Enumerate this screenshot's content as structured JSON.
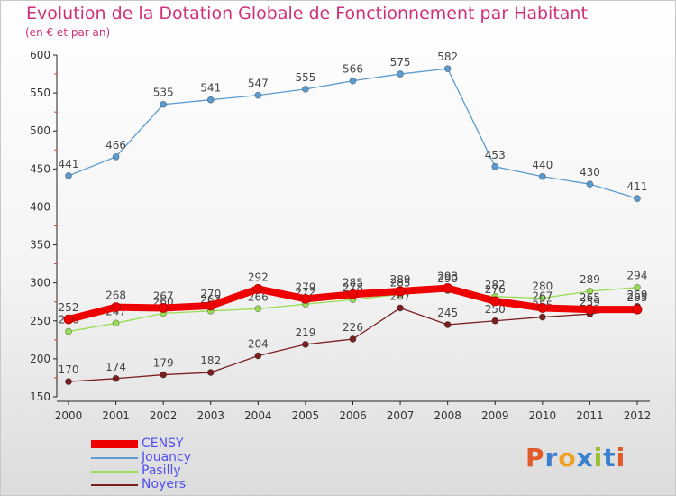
{
  "header": {
    "title": "Evolution de la Dotation Globale de Fonctionnement par Habitant",
    "subtitle": "(en € et par an)"
  },
  "chart_data": {
    "type": "line",
    "title": "Evolution de la Dotation Globale de Fonctionnement par Habitant",
    "subtitle": "(en € et par an)",
    "xlabel": "",
    "ylabel": "",
    "x": [
      "2000",
      "2001",
      "2002",
      "2003",
      "2004",
      "2005",
      "2006",
      "2007",
      "2008",
      "2009",
      "2010",
      "2011",
      "2012"
    ],
    "ylim": [
      150,
      600
    ],
    "yticks": [
      150,
      200,
      250,
      300,
      350,
      400,
      450,
      500,
      550,
      600
    ],
    "grid": false,
    "legend_position": "bottom-left",
    "series": [
      {
        "name": "CENSY",
        "color": "#ee0000",
        "values": [
          252,
          268,
          267,
          270,
          292,
          279,
          285,
          289,
          293,
          276,
          267,
          265,
          265
        ]
      },
      {
        "name": "Jouancy",
        "color": "#5b9bd0",
        "values": [
          441,
          466,
          535,
          541,
          547,
          555,
          566,
          575,
          582,
          453,
          440,
          430,
          411
        ]
      },
      {
        "name": "Pasilly",
        "color": "#99dd55",
        "values": [
          236,
          247,
          260,
          263,
          266,
          272,
          278,
          285,
          290,
          282,
          280,
          289,
          294
        ]
      },
      {
        "name": "Noyers",
        "color": "#7a2020",
        "values": [
          170,
          174,
          179,
          182,
          204,
          219,
          226,
          267,
          245,
          250,
          255,
          259,
          269
        ]
      }
    ]
  },
  "legend": {
    "items": [
      {
        "name": "CENSY",
        "color": "#ee0000"
      },
      {
        "name": "Jouancy",
        "color": "#5b9bd0"
      },
      {
        "name": "Pasilly",
        "color": "#99dd55"
      },
      {
        "name": "Noyers",
        "color": "#7a2020"
      }
    ]
  },
  "logo": {
    "text": "Proxiti",
    "colors": [
      "#e05a2a",
      "#3a7fd0",
      "#f0a020",
      "#3a7fd0",
      "#9ac030",
      "#3a7fd0",
      "#e05a2a"
    ]
  }
}
